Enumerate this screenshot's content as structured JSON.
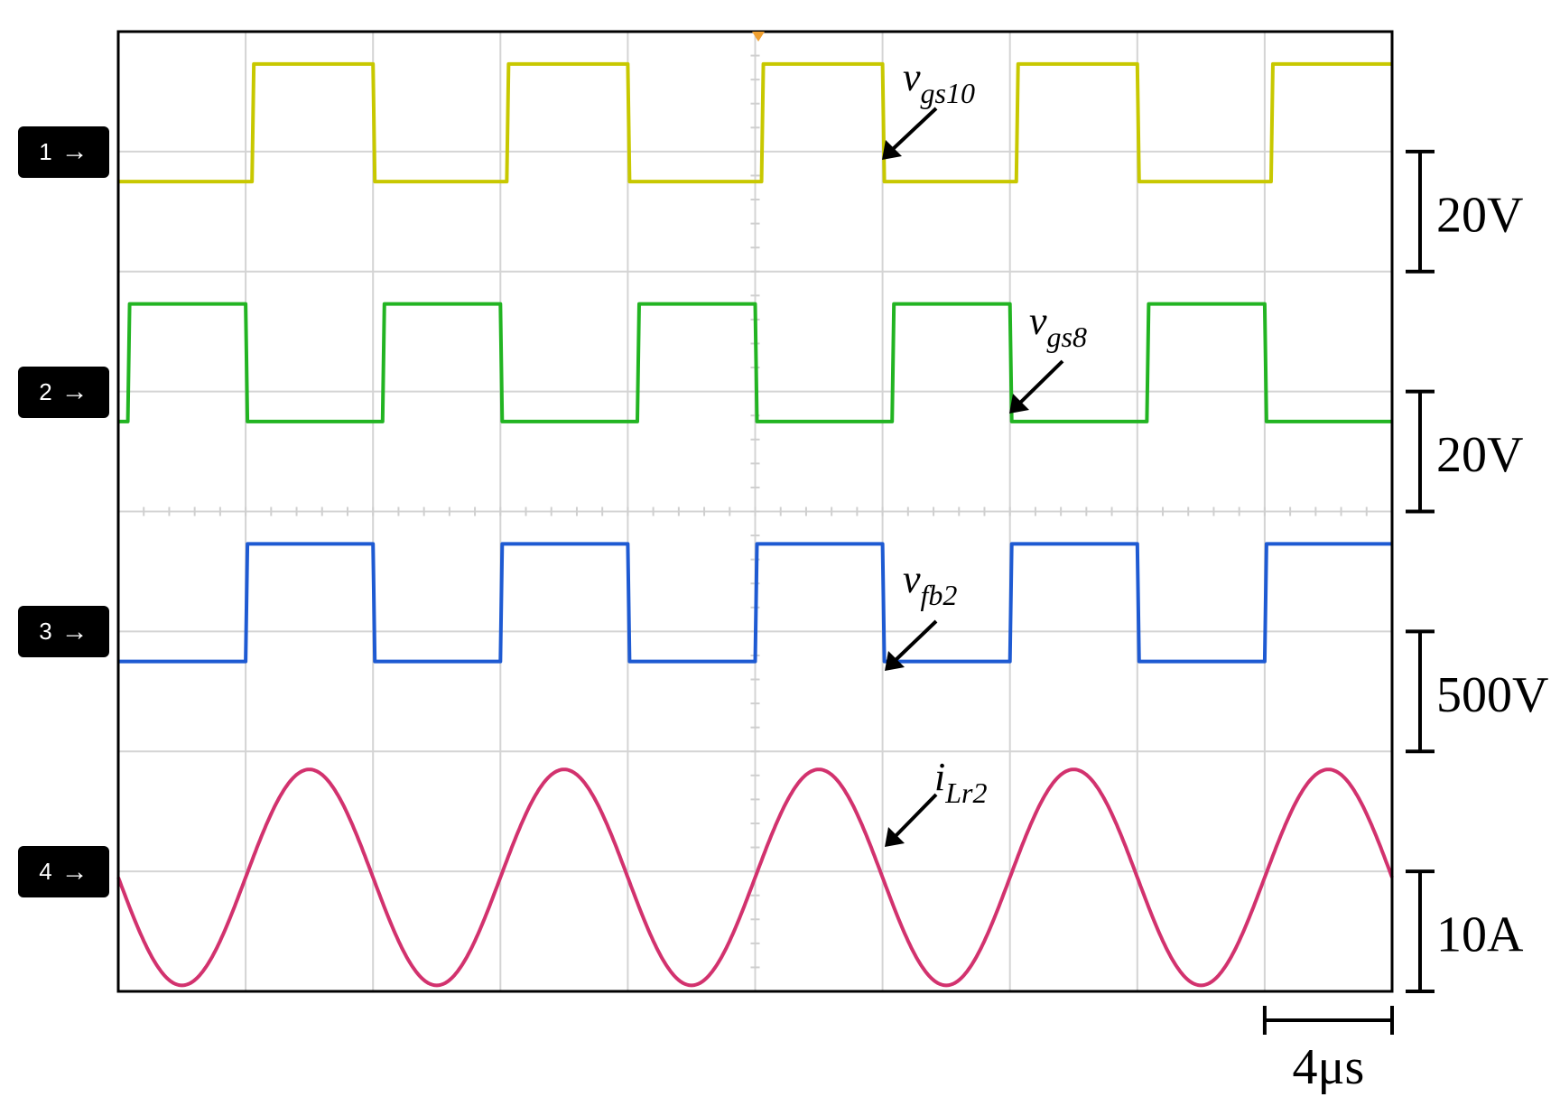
{
  "chart_data": {
    "type": "line",
    "title": "",
    "xlabel": "",
    "ylabel": "",
    "grid": true,
    "x_unit": "μs",
    "time_per_div": "4μs",
    "divisions": {
      "horizontal": 10,
      "vertical": 8
    },
    "xlim": [
      0,
      40
    ],
    "channels": [
      {
        "id": 1,
        "marker_label": "1",
        "name": "vgs10",
        "color": "#c8c800",
        "scale_label": "20V",
        "kind": "square",
        "high_intervals": [
          [
            4.2,
            8.0
          ],
          [
            12.2,
            16.0
          ],
          [
            20.2,
            24.0
          ],
          [
            28.2,
            32.0
          ],
          [
            36.2,
            40.0
          ]
        ]
      },
      {
        "id": 2,
        "marker_label": "2",
        "name": "vgs8",
        "color": "#22b422",
        "scale_label": "20V",
        "kind": "square",
        "high_intervals": [
          [
            0.3,
            4.0
          ],
          [
            8.3,
            12.0
          ],
          [
            16.3,
            20.0
          ],
          [
            24.3,
            28.0
          ],
          [
            32.3,
            36.0
          ]
        ]
      },
      {
        "id": 3,
        "marker_label": "3",
        "name": "vfb2",
        "color": "#1e5ad2",
        "scale_label": "500V",
        "kind": "square",
        "high_intervals": [
          [
            4.0,
            8.0
          ],
          [
            12.0,
            16.0
          ],
          [
            20.0,
            24.0
          ],
          [
            28.0,
            32.0
          ],
          [
            36.0,
            40.0
          ]
        ]
      },
      {
        "id": 4,
        "marker_label": "4",
        "name": "iLr2",
        "color": "#d2326e",
        "scale_label": "10A",
        "kind": "sine",
        "period_us": 8,
        "peak_at_us": 6.0,
        "amplitude_div": 1.3
      }
    ],
    "annotations": [
      {
        "channel": 1,
        "text": "v",
        "sub": "gs10"
      },
      {
        "channel": 2,
        "text": "v",
        "sub": "gs8"
      },
      {
        "channel": 3,
        "text": "v",
        "sub": "fb2"
      },
      {
        "channel": 4,
        "text": "i",
        "sub": "Lr2"
      }
    ],
    "time_scale_label": "4μs"
  }
}
